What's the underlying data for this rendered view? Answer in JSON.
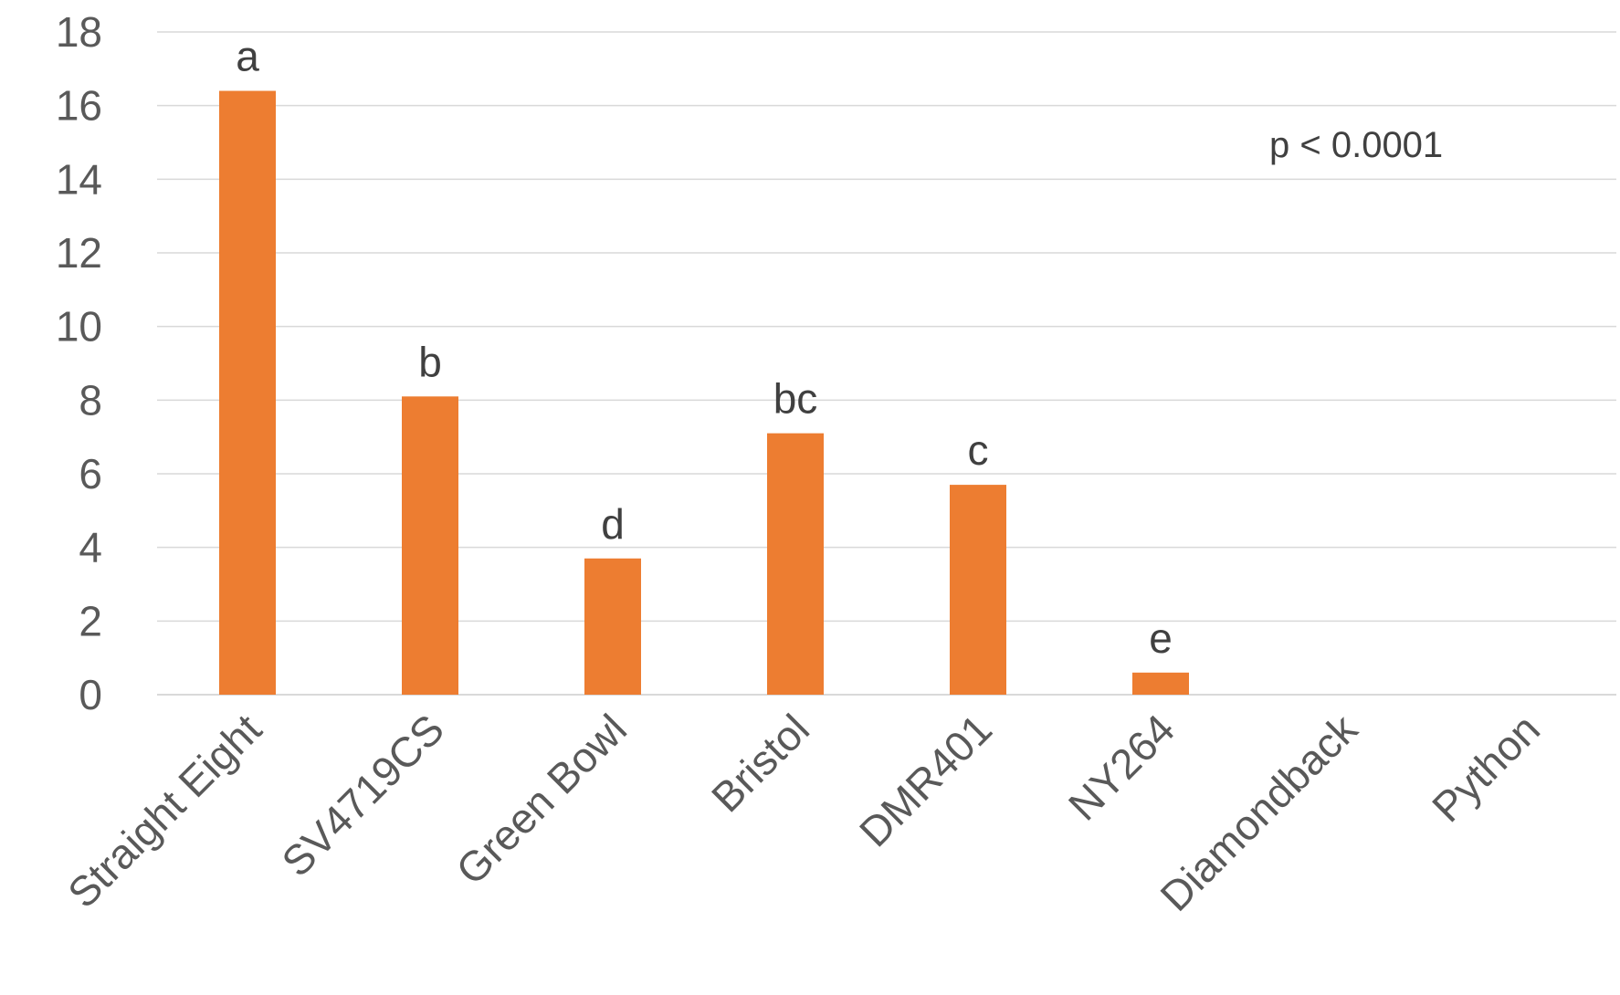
{
  "chart_data": {
    "type": "bar",
    "categories": [
      "Straight Eight",
      "SV4719CS",
      "Green Bowl",
      "Bristol",
      "DMR401",
      "NY264",
      "Diamondback",
      "Python"
    ],
    "values": [
      16.4,
      8.1,
      3.7,
      7.1,
      5.7,
      0.6,
      0,
      0
    ],
    "data_labels": [
      "a",
      "b",
      "d",
      "bc",
      "c",
      "e",
      "",
      ""
    ],
    "ylim": [
      0,
      18
    ],
    "yticks": [
      0,
      2,
      4,
      6,
      8,
      10,
      12,
      14,
      16,
      18
    ],
    "annotation": "p < 0.0001",
    "grid": true,
    "legend": "none",
    "bar_color": "#ED7D31",
    "grid_color": "#D9D9D9",
    "axis_color": "#D9D9D9"
  }
}
